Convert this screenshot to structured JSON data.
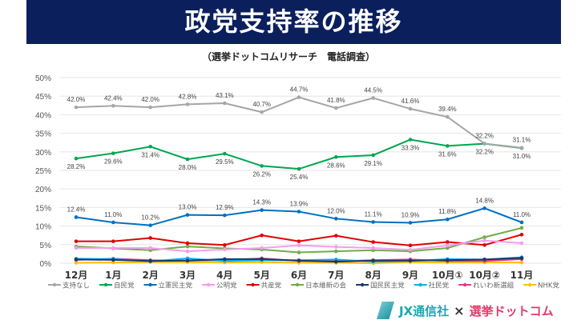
{
  "title": "政党支持率の推移",
  "subtitle": "（選挙ドットコムリサーチ　電話調査）",
  "footer": {
    "brand1": "JX通信社",
    "separator": "×",
    "brand2": "選挙ドットコム"
  },
  "chart_data": {
    "type": "line",
    "title": "政党支持率の推移",
    "subtitle": "（選挙ドットコムリサーチ　電話調査）",
    "categories": [
      "12月",
      "1月",
      "2月",
      "3月",
      "4月",
      "5月",
      "6月",
      "7月",
      "8月",
      "9月",
      "10月①",
      "10月②",
      "11月"
    ],
    "ylim": [
      0,
      50
    ],
    "yticks": [
      "0%",
      "5%",
      "10%",
      "15%",
      "20%",
      "25%",
      "30%",
      "35%",
      "40%",
      "45%",
      "50%"
    ],
    "grid": true,
    "legend_position": "bottom",
    "series": [
      {
        "name": "支持なし",
        "color": "#a6a6a6",
        "labels": "above",
        "values": [
          42.0,
          42.4,
          42.0,
          42.8,
          43.1,
          40.7,
          44.7,
          41.8,
          44.5,
          41.6,
          39.4,
          32.2,
          31.1
        ],
        "data_labels": [
          "42.0%",
          "42.4%",
          "42.0%",
          "42.8%",
          "43.1%",
          "40.7%",
          "44.7%",
          "41.8%",
          "44.5%",
          "41.6%",
          "39.4%",
          "32.2%",
          "31.1%"
        ]
      },
      {
        "name": "自民党",
        "color": "#00a651",
        "labels": "below",
        "values": [
          28.2,
          29.6,
          31.4,
          28.0,
          29.5,
          26.2,
          25.4,
          28.6,
          29.1,
          33.3,
          31.6,
          32.2,
          31.0
        ],
        "data_labels": [
          "28.2%",
          "29.6%",
          "31.4%",
          "28.0%",
          "29.5%",
          "26.2%",
          "25.4%",
          "28.6%",
          "29.1%",
          "33.3%",
          "31.6%",
          "32.2%",
          "31.0%"
        ]
      },
      {
        "name": "立憲民主党",
        "color": "#0070c0",
        "labels": "above",
        "values": [
          12.4,
          11.0,
          10.2,
          13.0,
          12.9,
          14.3,
          13.9,
          12.0,
          11.1,
          10.9,
          11.8,
          14.8,
          11.0
        ],
        "data_labels": [
          "12.4%",
          "11.0%",
          "10.2%",
          "13.0%",
          "12.9%",
          "14.3%",
          "13.9%",
          "12.0%",
          "11.1%",
          "10.9%",
          "11.8%",
          "14.8%",
          "11.0%"
        ]
      },
      {
        "name": "公明党",
        "color": "#f59cf0",
        "values": [
          4.1,
          4.1,
          4.1,
          3.2,
          3.7,
          4.1,
          4.8,
          4.4,
          4.1,
          3.6,
          4.8,
          6.1,
          5.4
        ]
      },
      {
        "name": "共産党",
        "color": "#e00000",
        "values": [
          5.9,
          5.9,
          6.8,
          5.4,
          4.9,
          7.5,
          5.9,
          7.4,
          5.7,
          4.8,
          5.7,
          4.9,
          7.7
        ]
      },
      {
        "name": "日本維新の会",
        "color": "#70ad47",
        "values": [
          4.5,
          4.0,
          3.5,
          4.5,
          4.0,
          3.7,
          2.9,
          3.2,
          3.5,
          3.2,
          4.1,
          7.0,
          9.5
        ]
      },
      {
        "name": "国民民主党",
        "color": "#1f3864",
        "values": [
          1.0,
          0.9,
          0.6,
          0.7,
          1.1,
          1.1,
          0.7,
          0.4,
          0.7,
          0.7,
          0.8,
          1.0,
          1.4
        ]
      },
      {
        "name": "社民党",
        "color": "#00b0f0",
        "values": [
          1.2,
          1.1,
          0.5,
          1.3,
          0.6,
          0.8,
          0.8,
          1.0,
          0.4,
          0.6,
          1.1,
          1.0,
          1.6
        ]
      },
      {
        "name": "れいわ新選組",
        "color": "#e0388c",
        "values": [
          0.9,
          1.2,
          0.8,
          0.7,
          0.8,
          1.3,
          0.6,
          0.5,
          0.8,
          1.0,
          0.6,
          0.6,
          1.1
        ]
      },
      {
        "name": "NHK党",
        "color": "#ffc000",
        "values": [
          0.1,
          0.2,
          0.3,
          0.3,
          0.2,
          0.3,
          0.1,
          0.1,
          0.0,
          0.3,
          0.2,
          0.2,
          0.2
        ]
      }
    ]
  }
}
